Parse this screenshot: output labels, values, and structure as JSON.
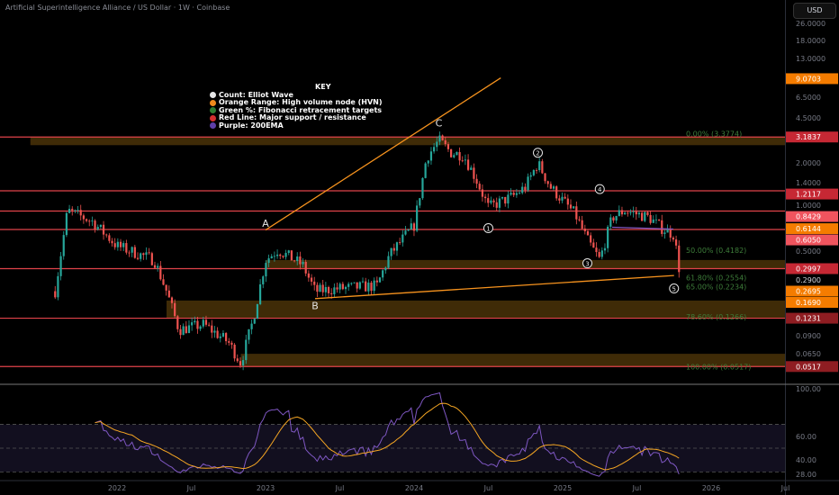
{
  "header": {
    "title": "Artificial Superintelligence Alliance / US Dollar · 1W · Coinbase",
    "currency_button": "USD"
  },
  "legend": {
    "title": "KEY",
    "items": [
      {
        "label": "Count: Elliot Wave",
        "color": "#e6e6e6"
      },
      {
        "label": "Orange Range: High volume node (HVN)",
        "color": "#f08a1c"
      },
      {
        "label": "Green %: Fibonacci retracement targets",
        "color": "#2e7d32"
      },
      {
        "label": "Red Line: Major support / resistance",
        "color": "#d32f2f"
      },
      {
        "label": "Purple: 200EMA",
        "color": "#5e3fa8"
      }
    ]
  },
  "colors": {
    "up": "#26a69a",
    "down": "#ef5350",
    "support_line": "#e0434a",
    "hvn_zone": "#4a3208",
    "fib_text": "#3e7d3a",
    "trendline": "#f7931e",
    "rsi": "#7e57c2",
    "rsi_ma": "#f5a623"
  },
  "chart_data": {
    "type": "candlestick",
    "scale": "log",
    "price_axis": {
      "ticks": [
        "26.0000",
        "18.0000",
        "13.0000",
        "6.5000",
        "4.5000",
        "2.0000",
        "1.4000",
        "1.0000",
        "0.5000",
        "0.0900",
        "0.0650"
      ],
      "labels": [
        {
          "text": "9.0703",
          "kind": "orange"
        },
        {
          "text": "3.1837",
          "kind": "red"
        },
        {
          "text": "1.2117",
          "kind": "red"
        },
        {
          "text": "0.8429",
          "kind": "pink"
        },
        {
          "text": "0.6144",
          "kind": "orange"
        },
        {
          "text": "0.6050",
          "kind": "pink"
        },
        {
          "text": "0.2997",
          "kind": "red"
        },
        {
          "text": "0.2900",
          "kind": "plain"
        },
        {
          "text": "0.2695",
          "kind": "orange"
        },
        {
          "text": "0.1690",
          "kind": "orange"
        },
        {
          "text": "0.1231",
          "kind": "darkred"
        },
        {
          "text": "0.0517",
          "kind": "darkred"
        }
      ]
    },
    "time_axis": [
      "2022",
      "Jul",
      "2023",
      "Jul",
      "2024",
      "Jul",
      "2025",
      "Jul",
      "2026",
      "Jul"
    ],
    "support_resistance": [
      3.1837,
      1.2117,
      0.8429,
      0.605,
      0.2997,
      0.1231,
      0.0517
    ],
    "hvn_zones": [
      [
        2.75,
        3.1837,
        "2021-06"
      ],
      [
        0.2997,
        0.35,
        "2023-01"
      ],
      [
        0.1231,
        0.169,
        "2022-05"
      ],
      [
        0.0517,
        0.065,
        "2022-11"
      ]
    ],
    "fibonacci": [
      {
        "text": "0.00% (3.3774)",
        "price": 3.3774
      },
      {
        "text": "50.00% (0.4182)",
        "price": 0.4182
      },
      {
        "text": "61.80% (0.2554)",
        "price": 0.2554
      },
      {
        "text": "65.00% (0.2234)",
        "price": 0.2234
      },
      {
        "text": "78.60% (0.1266)",
        "price": 0.1266
      },
      {
        "text": "100.00% (0.0517)",
        "price": 0.0517
      }
    ],
    "wave_labels": [
      {
        "text": "A",
        "date": "2023-01",
        "price": 0.68
      },
      {
        "text": "B",
        "date": "2023-05",
        "price": 0.155
      },
      {
        "text": "C",
        "date": "2024-03",
        "price": 4.1
      },
      {
        "text": "1",
        "date": "2024-07",
        "price": 0.62
      },
      {
        "text": "2",
        "date": "2024-11",
        "price": 2.4
      },
      {
        "text": "3",
        "date": "2025-03",
        "price": 0.33
      },
      {
        "text": "4",
        "date": "2025-04",
        "price": 1.25
      },
      {
        "text": "5",
        "date": "2025-10",
        "price": 0.21
      }
    ],
    "trendlines": [
      [
        [
          "2023-01",
          0.6
        ],
        [
          "2024-08",
          9.2
        ]
      ],
      [
        [
          "2023-05",
          0.175
        ],
        [
          "2025-10",
          0.265
        ]
      ]
    ],
    "ema200_price": 0.61,
    "price_path": [
      [
        "2021-08",
        0.2
      ],
      [
        "2021-09",
        0.85
      ],
      [
        "2021-11",
        0.7
      ],
      [
        "2022-01",
        0.45
      ],
      [
        "2022-04",
        0.35
      ],
      [
        "2022-05",
        0.2
      ],
      [
        "2022-06",
        0.1
      ],
      [
        "2022-08",
        0.11
      ],
      [
        "2022-10",
        0.08
      ],
      [
        "2022-11",
        0.055
      ],
      [
        "2022-12",
        0.12
      ],
      [
        "2023-01",
        0.35
      ],
      [
        "2023-02",
        0.42
      ],
      [
        "2023-04",
        0.32
      ],
      [
        "2023-05",
        0.2
      ],
      [
        "2023-07",
        0.21
      ],
      [
        "2023-10",
        0.22
      ],
      [
        "2023-11",
        0.38
      ],
      [
        "2023-12",
        0.5
      ],
      [
        "2024-01",
        0.65
      ],
      [
        "2024-02",
        2.2
      ],
      [
        "2024-03",
        3.0
      ],
      [
        "2024-04",
        2.4
      ],
      [
        "2024-05",
        2.3
      ],
      [
        "2024-06",
        1.5
      ],
      [
        "2024-07",
        0.9
      ],
      [
        "2024-09",
        1.1
      ],
      [
        "2024-10",
        1.3
      ],
      [
        "2024-11",
        2.0
      ],
      [
        "2024-12",
        1.3
      ],
      [
        "2025-02",
        0.8
      ],
      [
        "2025-03",
        0.5
      ],
      [
        "2025-04",
        0.35
      ],
      [
        "2025-05",
        0.75
      ],
      [
        "2025-06",
        0.85
      ],
      [
        "2025-08",
        0.75
      ],
      [
        "2025-09",
        0.62
      ],
      [
        "2025-10",
        0.55
      ],
      [
        "2025-10",
        0.27
      ]
    ],
    "rsi_axis": [
      "100.00",
      "60.00",
      "40.00",
      "28.00"
    ],
    "rsi_bands": [
      70,
      50,
      30
    ]
  }
}
